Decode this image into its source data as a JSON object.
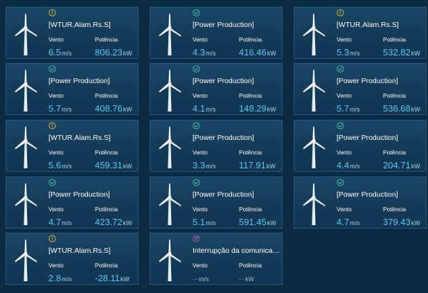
{
  "labels": {
    "wind": "Vento",
    "power": "Potência"
  },
  "units": {
    "wind": "m/s",
    "power": "kW"
  },
  "colors": {
    "warning": "#e0b43a",
    "ok": "#4bc2a9",
    "comm_error": "#a9669a",
    "value": "#5cc8f0"
  },
  "turbines": [
    {
      "status": "warning-icon",
      "title": "[WTUR.Alam.Rs.S]",
      "wind": "6.5",
      "power": "806.23"
    },
    {
      "status": "check-icon",
      "title": "[Power Production]",
      "wind": "4.3",
      "power": "416.46"
    },
    {
      "status": "warning-icon",
      "title": "[WTUR.Alam.Rs.S]",
      "wind": "5.3",
      "power": "532.82"
    },
    {
      "status": "check-icon",
      "title": "[Power Production]",
      "wind": "5.7",
      "power": "408.76"
    },
    {
      "status": "check-icon",
      "title": "[Power Production]",
      "wind": "4.1",
      "power": "148.29"
    },
    {
      "status": "check-icon",
      "title": "[Power Production]",
      "wind": "5.7",
      "power": "536.68"
    },
    {
      "status": "warning-icon",
      "title": "[WTUR.Alam.Rs.S]",
      "wind": "5.6",
      "power": "459.31"
    },
    {
      "status": "check-icon",
      "title": "[Power Production]",
      "wind": "3.3",
      "power": "117.91"
    },
    {
      "status": "check-icon",
      "title": "[Power Production]",
      "wind": "4.4",
      "power": "204.71"
    },
    {
      "status": "check-icon",
      "title": "[Power Production]",
      "wind": "4.7",
      "power": "423.72"
    },
    {
      "status": "check-icon",
      "title": "[Power Production]",
      "wind": "5.1",
      "power": "591.45"
    },
    {
      "status": "check-icon",
      "title": "[Power Production]",
      "wind": "4.7",
      "power": "379.43"
    },
    {
      "status": "warning-icon",
      "title": "[WTUR.Alam.Rs.S]",
      "wind": "2.8",
      "power": "-28.11"
    },
    {
      "status": "no-communication-icon",
      "title": "Interrupção da comunicaç...",
      "wind": "--",
      "power": "--"
    }
  ]
}
